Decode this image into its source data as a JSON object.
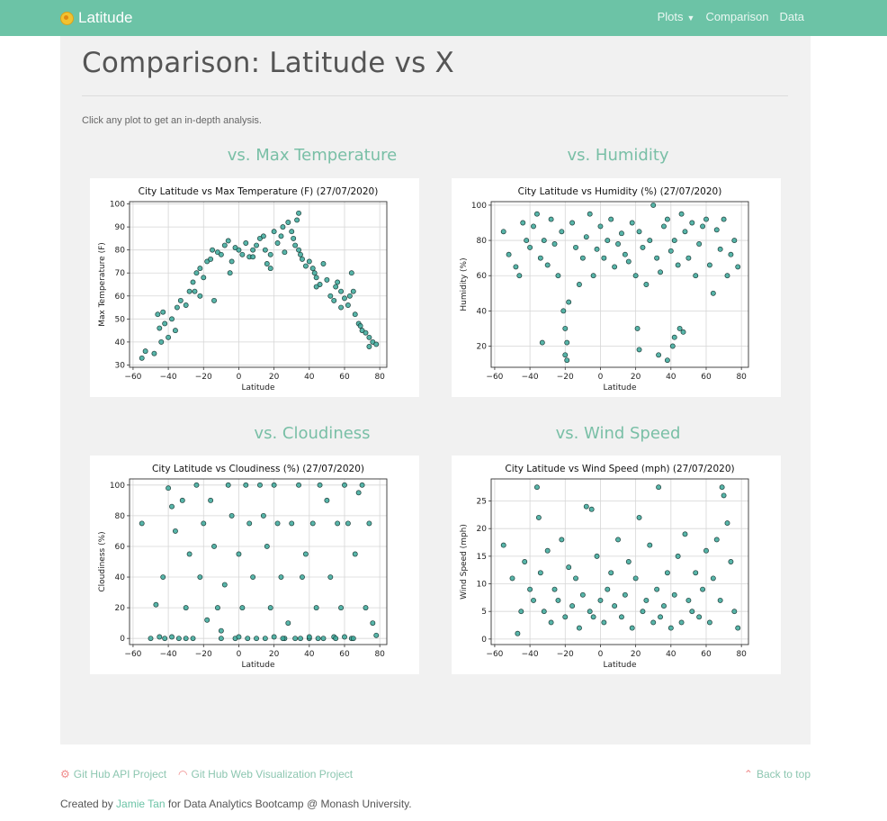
{
  "nav": {
    "brand": "Latitude",
    "links": {
      "plots": "Plots",
      "comparison": "Comparison",
      "data": "Data"
    }
  },
  "page": {
    "title": "Comparison: Latitude vs X",
    "hint": "Click any plot to get an in-depth analysis."
  },
  "sections": [
    {
      "heading": "vs. Max Temperature"
    },
    {
      "heading": "vs. Humidity"
    },
    {
      "heading": "vs. Cloudiness"
    },
    {
      "heading": "vs. Wind Speed"
    }
  ],
  "footer": {
    "link1": "Git Hub API Project",
    "link2": "Git Hub Web Visualization Project",
    "back": "Back to top",
    "credit_prefix": "Created by ",
    "credit_author": "Jamie Tan",
    "credit_suffix": " for Data Analytics Bootcamp @ Monash University."
  },
  "colors": {
    "navbar": "#6cc3a6",
    "accent": "#79bfa6",
    "marker_face": "#3aa89a",
    "marker_edge": "#1f3e3a"
  },
  "chart_data": [
    {
      "type": "scatter",
      "title": "City Latitude vs Max Temperature (F) (27/07/2020)",
      "xlabel": "Latitude",
      "ylabel": "Max Temperature (F)",
      "xlim": [
        -62,
        84
      ],
      "ylim": [
        29,
        101
      ],
      "xticks": [
        -60,
        -40,
        -20,
        0,
        20,
        40,
        60,
        80
      ],
      "yticks": [
        30,
        40,
        50,
        60,
        70,
        80,
        90,
        100
      ],
      "grid": true,
      "x": [
        -55,
        -53,
        -46,
        -45,
        -44,
        -43,
        -42,
        -38,
        -36,
        -35,
        -33,
        -30,
        -28,
        -26,
        -24,
        -22,
        -22,
        -20,
        -18,
        -16,
        -15,
        -12,
        -10,
        -8,
        -6,
        -4,
        -2,
        0,
        2,
        4,
        6,
        8,
        10,
        12,
        14,
        15,
        16,
        18,
        20,
        22,
        24,
        25,
        26,
        28,
        30,
        31,
        32,
        33,
        34,
        35,
        36,
        38,
        40,
        42,
        43,
        44,
        46,
        48,
        50,
        52,
        54,
        55,
        56,
        58,
        60,
        62,
        63,
        64,
        65,
        66,
        68,
        70,
        72,
        74,
        76,
        78,
        -48,
        -40,
        -25,
        -14,
        -5,
        8,
        18,
        34,
        44,
        58,
        69,
        74
      ],
      "y": [
        33,
        36,
        52,
        46,
        40,
        53,
        48,
        50,
        45,
        55,
        58,
        56,
        62,
        66,
        70,
        72,
        60,
        68,
        75,
        76,
        80,
        79,
        78,
        82,
        84,
        75,
        81,
        80,
        78,
        83,
        77,
        80,
        82,
        85,
        86,
        80,
        74,
        78,
        88,
        83,
        86,
        90,
        79,
        92,
        88,
        85,
        82,
        93,
        80,
        78,
        76,
        73,
        75,
        72,
        70,
        68,
        65,
        74,
        67,
        60,
        58,
        64,
        66,
        62,
        59,
        56,
        60,
        70,
        62,
        52,
        48,
        45,
        44,
        42,
        40,
        39,
        35,
        42,
        62,
        58,
        70,
        77,
        72,
        96,
        64,
        55,
        47,
        38
      ]
    },
    {
      "type": "scatter",
      "title": "City Latitude vs Humidity (%) (27/07/2020)",
      "xlabel": "Latitude",
      "ylabel": "Humidity (%)",
      "xlim": [
        -62,
        84
      ],
      "ylim": [
        8,
        102
      ],
      "xticks": [
        -60,
        -40,
        -20,
        0,
        20,
        40,
        60,
        80
      ],
      "yticks": [
        20,
        40,
        60,
        80,
        100
      ],
      "grid": true,
      "x": [
        -55,
        -52,
        -48,
        -46,
        -44,
        -42,
        -40,
        -38,
        -36,
        -34,
        -32,
        -30,
        -28,
        -26,
        -24,
        -22,
        -21,
        -20,
        -19,
        -18,
        -16,
        -14,
        -12,
        -10,
        -8,
        -6,
        -4,
        -2,
        0,
        2,
        4,
        6,
        8,
        10,
        12,
        14,
        16,
        18,
        20,
        22,
        24,
        26,
        28,
        30,
        32,
        34,
        36,
        38,
        40,
        42,
        44,
        46,
        48,
        50,
        52,
        54,
        56,
        58,
        60,
        62,
        64,
        66,
        68,
        70,
        72,
        74,
        76,
        78,
        -20,
        -19,
        21,
        22,
        41,
        42,
        45,
        47,
        33,
        38,
        -33
      ],
      "y": [
        85,
        72,
        65,
        60,
        90,
        80,
        76,
        88,
        95,
        70,
        80,
        66,
        92,
        78,
        60,
        85,
        40,
        30,
        22,
        45,
        90,
        76,
        55,
        70,
        82,
        95,
        60,
        75,
        88,
        70,
        80,
        92,
        65,
        78,
        84,
        72,
        68,
        90,
        60,
        85,
        76,
        55,
        80,
        100,
        70,
        62,
        88,
        92,
        74,
        80,
        66,
        95,
        85,
        70,
        90,
        60,
        78,
        88,
        92,
        66,
        50,
        86,
        75,
        92,
        60,
        72,
        80,
        65,
        15,
        12,
        30,
        18,
        20,
        25,
        30,
        28,
        15,
        12,
        22
      ]
    },
    {
      "type": "scatter",
      "title": "City Latitude vs Cloudiness (%) (27/07/2020)",
      "xlabel": "Latitude",
      "ylabel": "Cloudiness (%)",
      "xlim": [
        -62,
        84
      ],
      "ylim": [
        -4,
        104
      ],
      "xticks": [
        -60,
        -40,
        -20,
        0,
        20,
        40,
        60,
        80
      ],
      "yticks": [
        0,
        20,
        40,
        60,
        80,
        100
      ],
      "grid": true,
      "x": [
        -55,
        -50,
        -47,
        -45,
        -43,
        -40,
        -38,
        -36,
        -34,
        -32,
        -30,
        -28,
        -26,
        -24,
        -22,
        -20,
        -18,
        -16,
        -14,
        -12,
        -10,
        -8,
        -6,
        -4,
        -2,
        0,
        2,
        4,
        6,
        8,
        10,
        12,
        14,
        16,
        18,
        20,
        22,
        24,
        26,
        28,
        30,
        32,
        34,
        36,
        38,
        40,
        42,
        44,
        46,
        48,
        50,
        52,
        54,
        56,
        58,
        60,
        62,
        64,
        66,
        68,
        70,
        72,
        74,
        76,
        78,
        -42,
        -30,
        -10,
        5,
        15,
        25,
        35,
        45,
        55,
        65,
        -38,
        0,
        20,
        40,
        60
      ],
      "y": [
        75,
        0,
        22,
        1,
        40,
        98,
        86,
        70,
        0,
        90,
        20,
        55,
        0,
        100,
        40,
        75,
        12,
        90,
        60,
        20,
        5,
        35,
        100,
        80,
        0,
        55,
        20,
        100,
        75,
        40,
        0,
        100,
        80,
        60,
        20,
        100,
        75,
        40,
        0,
        10,
        75,
        0,
        100,
        40,
        55,
        0,
        75,
        20,
        100,
        0,
        90,
        40,
        1,
        75,
        20,
        100,
        75,
        0,
        55,
        95,
        100,
        20,
        75,
        10,
        2,
        0,
        0,
        0,
        0,
        0,
        0,
        0,
        0,
        0,
        0,
        1,
        1,
        1,
        1,
        1
      ]
    },
    {
      "type": "scatter",
      "title": "City Latitude vs Wind Speed (mph) (27/07/2020)",
      "xlabel": "Latitude",
      "ylabel": "Wind Speed (mph)",
      "xlim": [
        -62,
        84
      ],
      "ylim": [
        -1,
        29
      ],
      "xticks": [
        -60,
        -40,
        -20,
        0,
        20,
        40,
        60,
        80
      ],
      "yticks": [
        0,
        5,
        10,
        15,
        20,
        25
      ],
      "grid": true,
      "x": [
        -55,
        -50,
        -47,
        -45,
        -43,
        -40,
        -38,
        -36,
        -35,
        -34,
        -32,
        -30,
        -28,
        -26,
        -24,
        -22,
        -20,
        -18,
        -16,
        -14,
        -12,
        -10,
        -8,
        -6,
        -5,
        -4,
        -2,
        0,
        2,
        4,
        6,
        8,
        10,
        12,
        14,
        16,
        18,
        20,
        22,
        24,
        26,
        28,
        30,
        32,
        33,
        34,
        36,
        38,
        40,
        42,
        44,
        46,
        48,
        50,
        52,
        54,
        56,
        58,
        60,
        62,
        64,
        66,
        68,
        69,
        70,
        72,
        74,
        76,
        78
      ],
      "y": [
        17,
        11,
        1,
        5,
        14,
        9,
        7,
        27.5,
        22,
        12,
        5,
        16,
        3,
        9,
        7,
        18,
        4,
        13,
        6,
        11,
        2,
        8,
        24,
        5,
        23.5,
        4,
        15,
        7,
        3,
        9,
        12,
        6,
        18,
        4,
        8,
        14,
        2,
        11,
        22,
        5,
        7,
        17,
        3,
        9,
        27.5,
        4,
        6,
        12,
        2,
        8,
        15,
        3,
        19,
        7,
        5,
        12,
        4,
        9,
        16,
        3,
        11,
        18,
        7,
        27.5,
        26,
        21,
        14,
        5,
        2
      ]
    }
  ]
}
